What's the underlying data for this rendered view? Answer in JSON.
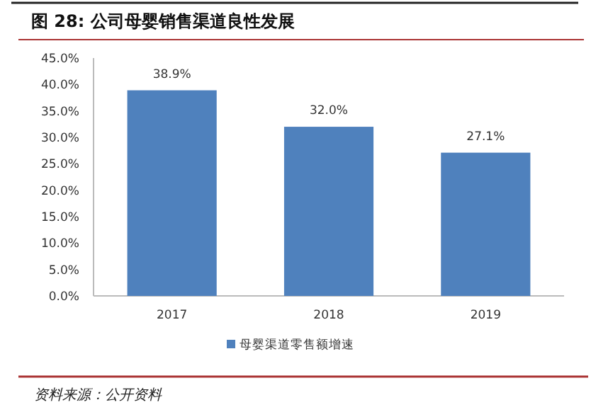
{
  "chart_data": {
    "type": "bar",
    "title": "图 28:  公司母婴销售渠道良性发展",
    "categories": [
      "2017",
      "2018",
      "2019"
    ],
    "series": [
      {
        "name": "母婴渠道零售额增速",
        "color": "#4f81bd",
        "values": [
          38.9,
          32.0,
          27.1
        ],
        "value_labels": [
          "38.9%",
          "32.0%",
          "27.1%"
        ]
      }
    ],
    "ylim": [
      0,
      45
    ],
    "yticks": [
      {
        "value": 0,
        "label": "0.0%"
      },
      {
        "value": 5,
        "label": "5.0%"
      },
      {
        "value": 10,
        "label": "10.0%"
      },
      {
        "value": 15,
        "label": "15.0%"
      },
      {
        "value": 20,
        "label": "20.0%"
      },
      {
        "value": 25,
        "label": "25.0%"
      },
      {
        "value": 30,
        "label": "30.0%"
      },
      {
        "value": 35,
        "label": "35.0%"
      },
      {
        "value": 40,
        "label": "40.0%"
      },
      {
        "value": 45,
        "label": "45.0%"
      }
    ],
    "legend": "bottom",
    "grid": false,
    "annotations": [
      "资料来源：公开资料"
    ]
  }
}
